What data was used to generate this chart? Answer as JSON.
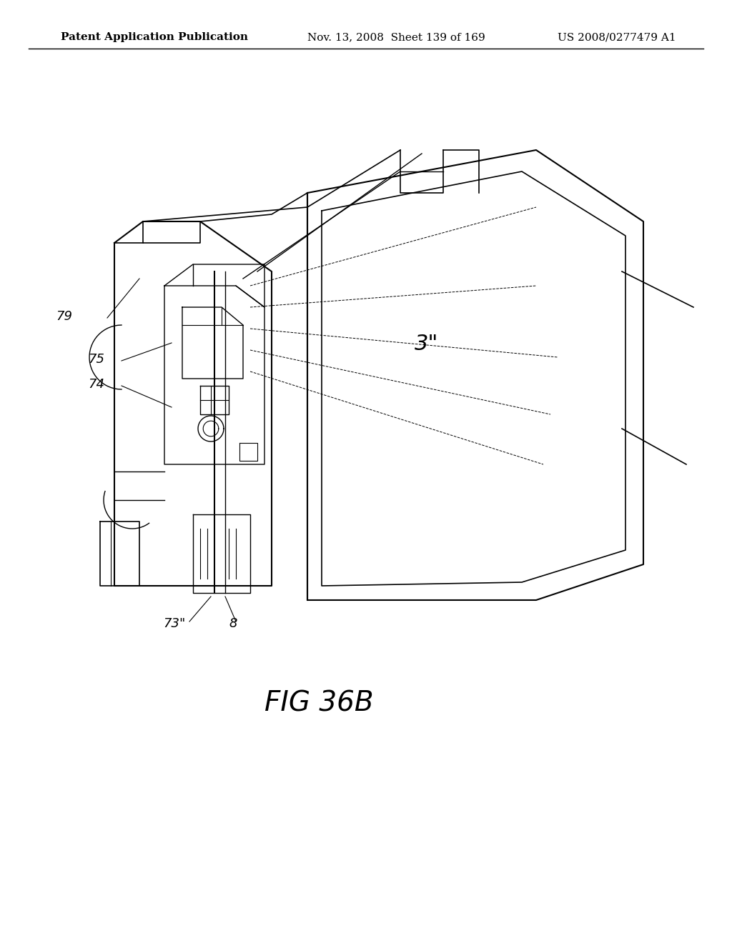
{
  "title_left": "Patent Application Publication",
  "title_mid": "Nov. 13, 2008  Sheet 139 of 169",
  "title_right": "US 2008/0277479 A1",
  "fig_label": "FIG 36B",
  "labels": [
    "79",
    "75",
    "74",
    "3\"",
    "73\"",
    "8"
  ],
  "background_color": "#ffffff",
  "line_color": "#000000",
  "header_fontsize": 11,
  "fig_label_fontsize": 28
}
